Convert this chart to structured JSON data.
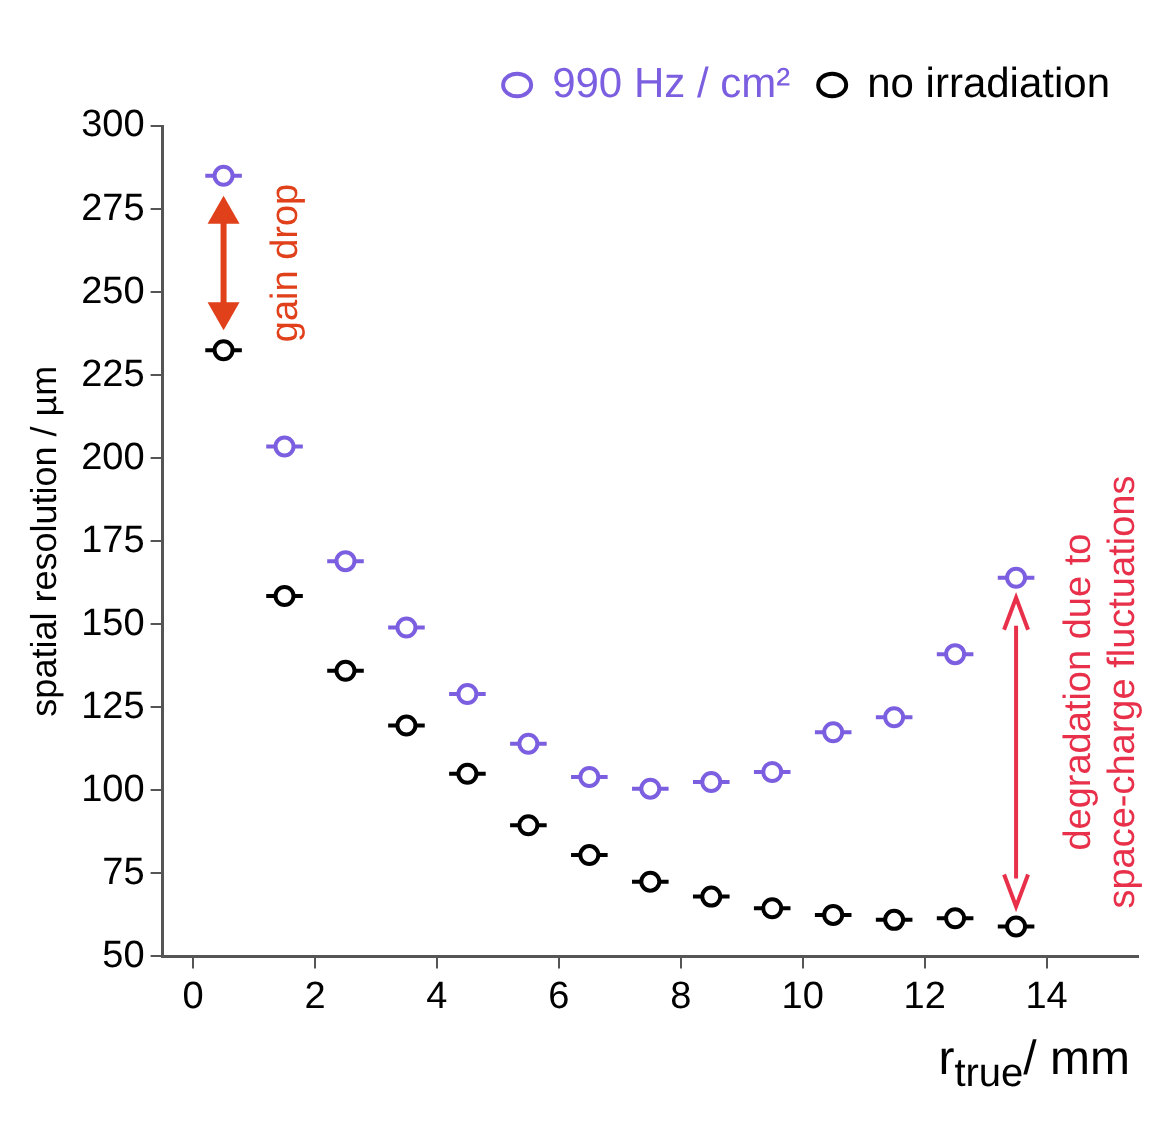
{
  "chart_data": {
    "type": "scatter",
    "ylabel": "spatial resolution / µm",
    "xlabel": "r$_{true}$/ mm",
    "x": [
      0.5,
      1.5,
      2.5,
      3.5,
      4.5,
      5.5,
      6.5,
      7.5,
      8.5,
      9.5,
      10.5,
      11.5,
      12.5,
      13.5
    ],
    "series": [
      {
        "name": "990 Hz / cm²",
        "color": "#7b5fe0",
        "values": [
          285,
          203.5,
          169,
          149,
          129,
          114,
          104,
          100.5,
          102.5,
          105.5,
          117.5,
          122,
          141,
          164
        ],
        "xerrors": [
          0.3,
          0.3,
          0.3,
          0.3,
          0.3,
          0.3,
          0.3,
          0.3,
          0.3,
          0.3,
          0.3,
          0.3,
          0.3,
          0.3
        ]
      },
      {
        "name": "no irradiation",
        "color": "#000000",
        "values": [
          232.5,
          158.5,
          136,
          119.5,
          105,
          89.5,
          80.5,
          72.5,
          68,
          64.5,
          62.5,
          61,
          61.5,
          59
        ],
        "xerrors": [
          0.3,
          0.3,
          0.3,
          0.3,
          0.3,
          0.3,
          0.3,
          0.3,
          0.3,
          0.3,
          0.3,
          0.3,
          0.3,
          0.3
        ]
      }
    ],
    "xlim": [
      -0.5,
      15.5
    ],
    "xticks": [
      0,
      2,
      4,
      6,
      8,
      10,
      12,
      14
    ],
    "ylim": [
      50,
      300
    ],
    "yticks": [
      50,
      75,
      100,
      125,
      150,
      175,
      200,
      225,
      250,
      275,
      300
    ],
    "annotations": [
      "gain drop",
      "degradation due to space-charge fluctuations"
    ],
    "marker": "circle",
    "legend": "top right",
    "grid": false
  }
}
